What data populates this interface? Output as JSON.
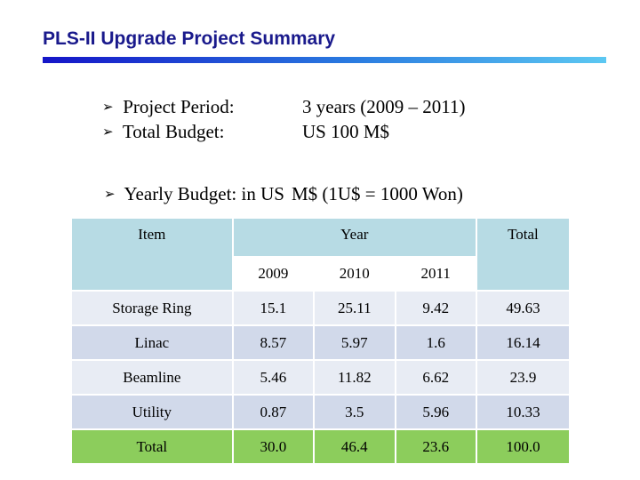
{
  "slide": {
    "title": "PLS-II Upgrade Project Summary",
    "bullets": [
      {
        "label": "Project Period:",
        "value": "3 years (2009 – 2011)"
      },
      {
        "label": "Total Budget:",
        "value": "US 100 M$"
      }
    ],
    "yearly_budget": {
      "prefix": "Yearly Budget: in US",
      "suffix": "M$ (1U$ = 1000 Won)"
    },
    "colors": {
      "title": "#1a1a8c",
      "header_fill": "#b7dbe4",
      "total_row": "#8ccd5c"
    }
  },
  "table": {
    "headers": {
      "item": "Item",
      "year": "Year",
      "total": "Total"
    },
    "years": [
      "2009",
      "2010",
      "2011"
    ],
    "rows": [
      {
        "item": "Storage Ring",
        "values": [
          "15.1",
          "25.11",
          "9.42"
        ],
        "total": "49.63"
      },
      {
        "item": "Linac",
        "values": [
          "8.57",
          "5.97",
          "1.6"
        ],
        "total": "16.14"
      },
      {
        "item": "Beamline",
        "values": [
          "5.46",
          "11.82",
          "6.62"
        ],
        "total": "23.9"
      },
      {
        "item": "Utility",
        "values": [
          "0.87",
          "3.5",
          "5.96"
        ],
        "total": "10.33"
      },
      {
        "item": "Total",
        "values": [
          "30.0",
          "46.4",
          "23.6"
        ],
        "total": "100.0"
      }
    ]
  }
}
